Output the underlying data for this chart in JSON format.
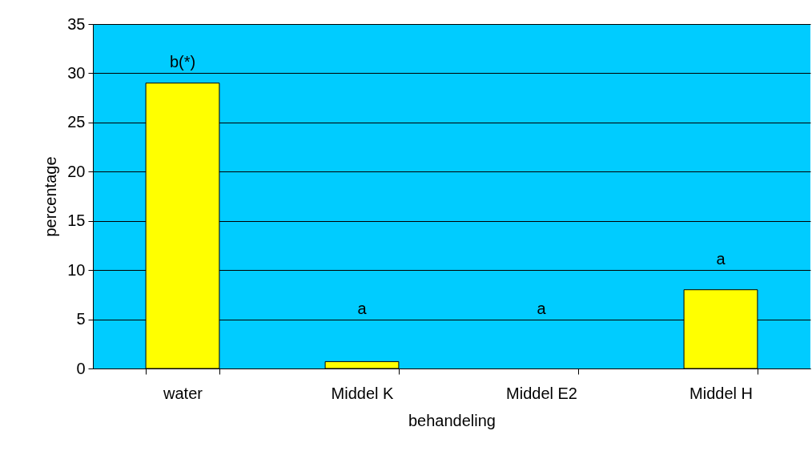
{
  "chart_data": {
    "type": "bar",
    "xlabel": "behandeling",
    "ylabel": "percentage",
    "categories": [
      "water",
      "Middel K",
      "Middel E2",
      "Middel H"
    ],
    "values": [
      29,
      0.7,
      0,
      8
    ],
    "color": "#ffff00",
    "ylim": [
      0,
      35
    ],
    "yticks": [
      0,
      5,
      10,
      15,
      20,
      25,
      30,
      35
    ],
    "grid": "y",
    "annotations": [
      "b(*)",
      "a",
      "a",
      "a"
    ]
  }
}
